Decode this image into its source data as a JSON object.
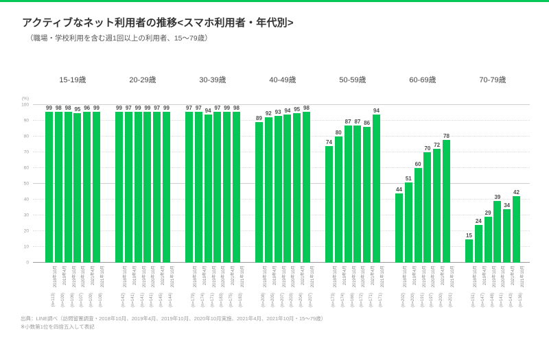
{
  "page": {
    "title": "アクティブなネット利用者の推移<スマホ利用者・年代別>",
    "subtitle": "（職場・学校利用を含む週1回以上の利用者、15～79歳）",
    "footnote_source": "出典：LINE調べ（訪問留置調査・2018年10月、2019年4月、2019年10月、2020年10月実施、2021年4月、2021年10月・15～79歳）",
    "footnote_note": "※小数第1位を四捨五入して表記",
    "accent_color": "#06C755"
  },
  "chart_data": {
    "type": "bar",
    "unit_label": "(%)",
    "ylabel": "",
    "xlabel": "",
    "ylim": [
      0,
      100
    ],
    "ytick_step": 10,
    "grid": "horizontal dotted, solid at 50 and 100",
    "legend": "none",
    "bar_color": "#06C755",
    "periods": [
      "2018年10月",
      "2019年4月",
      "2019年10月",
      "2020年10月",
      "2021年4月",
      "2021年10月"
    ],
    "groups": [
      {
        "label": "15-19歳",
        "values": [
          99,
          98,
          98,
          95,
          96,
          99
        ],
        "n": [
          "(n=113)",
          "(n=109)",
          "(n=106)",
          "(n=107)",
          "(n=109)",
          "(n=108)"
        ]
      },
      {
        "label": "20-29歳",
        "values": [
          99,
          97,
          99,
          99,
          97,
          99
        ],
        "n": [
          "(n=142)",
          "(n=141)",
          "(n=141)",
          "(n=141)",
          "(n=145)",
          "(n=144)"
        ]
      },
      {
        "label": "30-39歳",
        "values": [
          97,
          97,
          94,
          97,
          99,
          98
        ],
        "n": [
          "(n=179)",
          "(n=174)",
          "(n=171)",
          "(n=183)",
          "(n=175)",
          "(n=183)"
        ]
      },
      {
        "label": "40-49歳",
        "values": [
          89,
          92,
          93,
          94,
          95,
          98
        ],
        "n": [
          "(n=208)",
          "(n=205)",
          "(n=207)",
          "(n=203)",
          "(n=204)",
          "(n=207)"
        ]
      },
      {
        "label": "50-59歳",
        "values": [
          74,
          80,
          87,
          87,
          86,
          94
        ],
        "n": [
          "(n=173)",
          "(n=174)",
          "(n=166)",
          "(n=172)",
          "(n=171)",
          "(n=171)"
        ]
      },
      {
        "label": "60-69歳",
        "values": [
          44,
          51,
          60,
          70,
          72,
          78
        ],
        "n": [
          "(n=202)",
          "(n=200)",
          "(n=191)",
          "(n=197)",
          "(n=200)",
          "(n=201)"
        ]
      },
      {
        "label": "70-79歳",
        "values": [
          15,
          24,
          29,
          39,
          34,
          42
        ],
        "n": [
          "(n=151)",
          "(n=147)",
          "(n=148)",
          "(n=141)",
          "(n=143)",
          "(n=136)"
        ]
      }
    ]
  }
}
